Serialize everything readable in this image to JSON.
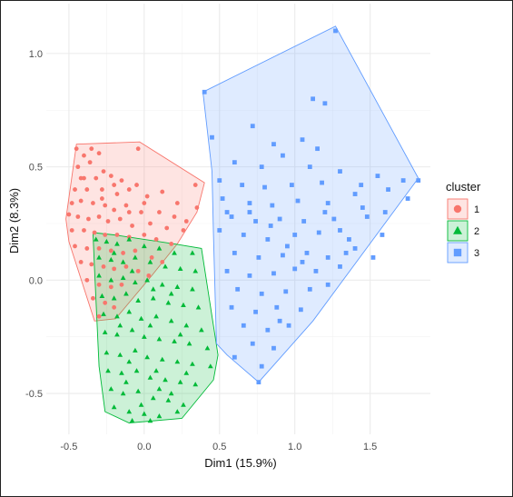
{
  "chart_data": {
    "type": "scatter",
    "title": "",
    "xlabel": "Dim1 (15.9%)",
    "ylabel": "Dim2 (8.3%)",
    "xlim": [
      -0.65,
      1.9
    ],
    "ylim": [
      -0.68,
      1.22
    ],
    "x_ticks": [
      "-0.5",
      "0.0",
      "0.5",
      "1.0",
      "1.5"
    ],
    "x_tick_values": [
      -0.5,
      0.0,
      0.5,
      1.0,
      1.5
    ],
    "y_ticks": [
      "-0.5",
      "0.0",
      "0.5",
      "1.0"
    ],
    "y_tick_values": [
      -0.5,
      0.0,
      0.5,
      1.0
    ],
    "grid": true,
    "legend_position": "right",
    "legend_title": "cluster",
    "series": [
      {
        "name": "1",
        "marker": "circle",
        "color": "#F8766D",
        "hull": [
          [
            -0.45,
            0.6
          ],
          [
            -0.03,
            0.61
          ],
          [
            0.4,
            0.43
          ],
          [
            0.35,
            0.3
          ],
          [
            0.22,
            0.16
          ],
          [
            0.05,
            0.02
          ],
          [
            -0.19,
            -0.17
          ],
          [
            -0.33,
            -0.18
          ],
          [
            -0.5,
            0.17
          ],
          [
            -0.52,
            0.27
          ]
        ],
        "points": [
          [
            -0.45,
            0.58
          ],
          [
            -0.4,
            0.55
          ],
          [
            -0.3,
            0.56
          ],
          [
            -0.04,
            0.58
          ],
          [
            -0.44,
            0.5
          ],
          [
            -0.36,
            0.52
          ],
          [
            -0.27,
            0.48
          ],
          [
            -0.4,
            0.45
          ],
          [
            -0.32,
            0.45
          ],
          [
            -0.22,
            0.46
          ],
          [
            -0.15,
            0.44
          ],
          [
            -0.05,
            0.42
          ],
          [
            -0.46,
            0.4
          ],
          [
            -0.38,
            0.4
          ],
          [
            -0.28,
            0.4
          ],
          [
            -0.18,
            0.38
          ],
          [
            -0.1,
            0.4
          ],
          [
            0.02,
            0.37
          ],
          [
            0.12,
            0.39
          ],
          [
            0.22,
            0.34
          ],
          [
            0.34,
            0.42
          ],
          [
            -0.48,
            0.34
          ],
          [
            -0.42,
            0.35
          ],
          [
            -0.34,
            0.34
          ],
          [
            -0.26,
            0.33
          ],
          [
            -0.2,
            0.31
          ],
          [
            -0.12,
            0.33
          ],
          [
            -0.02,
            0.3
          ],
          [
            0.1,
            0.3
          ],
          [
            0.2,
            0.28
          ],
          [
            0.35,
            0.32
          ],
          [
            -0.5,
            0.29
          ],
          [
            -0.44,
            0.28
          ],
          [
            -0.37,
            0.27
          ],
          [
            -0.3,
            0.28
          ],
          [
            -0.24,
            0.26
          ],
          [
            -0.16,
            0.27
          ],
          [
            -0.08,
            0.24
          ],
          [
            0.04,
            0.25
          ],
          [
            0.15,
            0.23
          ],
          [
            0.26,
            0.22
          ],
          [
            -0.48,
            0.22
          ],
          [
            -0.4,
            0.22
          ],
          [
            -0.33,
            0.21
          ],
          [
            -0.26,
            0.2
          ],
          [
            -0.18,
            0.2
          ],
          [
            -0.1,
            0.19
          ],
          [
            0.0,
            0.2
          ],
          [
            0.08,
            0.18
          ],
          [
            0.18,
            0.16
          ],
          [
            -0.46,
            0.15
          ],
          [
            -0.38,
            0.14
          ],
          [
            -0.3,
            0.14
          ],
          [
            -0.22,
            0.13
          ],
          [
            -0.14,
            0.12
          ],
          [
            -0.06,
            0.13
          ],
          [
            0.05,
            0.1
          ],
          [
            0.12,
            0.08
          ],
          [
            -0.42,
            0.08
          ],
          [
            -0.35,
            0.07
          ],
          [
            -0.27,
            0.06
          ],
          [
            -0.2,
            0.05
          ],
          [
            -0.12,
            0.06
          ],
          [
            -0.04,
            0.04
          ],
          [
            0.03,
            0.02
          ],
          [
            -0.38,
            0.0
          ],
          [
            -0.3,
            -0.02
          ],
          [
            -0.22,
            -0.03
          ],
          [
            -0.15,
            -0.02
          ],
          [
            -0.34,
            -0.08
          ],
          [
            -0.26,
            -0.1
          ],
          [
            -0.2,
            -0.12
          ],
          [
            -0.3,
            -0.16
          ],
          [
            -0.42,
            0.45
          ],
          [
            -0.35,
            0.58
          ],
          [
            -0.28,
            0.36
          ],
          [
            -0.2,
            0.42
          ],
          [
            -0.1,
            0.3
          ],
          [
            0.0,
            0.34
          ],
          [
            0.28,
            0.26
          ]
        ]
      },
      {
        "name": "2",
        "marker": "triangle",
        "color": "#00BA38",
        "hull": [
          [
            -0.34,
            0.21
          ],
          [
            -0.2,
            0.2
          ],
          [
            0.2,
            0.16
          ],
          [
            0.38,
            0.14
          ],
          [
            0.49,
            -0.33
          ],
          [
            0.46,
            -0.44
          ],
          [
            0.25,
            -0.61
          ],
          [
            -0.1,
            -0.63
          ],
          [
            -0.26,
            -0.58
          ],
          [
            -0.3,
            -0.38
          ],
          [
            -0.33,
            0.05
          ]
        ],
        "points": [
          [
            -0.32,
            0.18
          ],
          [
            -0.25,
            0.17
          ],
          [
            -0.18,
            0.16
          ],
          [
            -0.1,
            0.18
          ],
          [
            0.0,
            0.15
          ],
          [
            0.1,
            0.14
          ],
          [
            0.2,
            0.12
          ],
          [
            0.32,
            0.12
          ],
          [
            -0.3,
            0.1
          ],
          [
            -0.22,
            0.09
          ],
          [
            -0.14,
            0.08
          ],
          [
            -0.06,
            0.1
          ],
          [
            0.04,
            0.08
          ],
          [
            0.14,
            0.06
          ],
          [
            0.24,
            0.05
          ],
          [
            0.34,
            0.04
          ],
          [
            -0.3,
            0.02
          ],
          [
            -0.22,
            0.0
          ],
          [
            -0.14,
            0.01
          ],
          [
            -0.06,
            -0.01
          ],
          [
            0.02,
            0.0
          ],
          [
            0.12,
            -0.02
          ],
          [
            0.22,
            -0.03
          ],
          [
            0.32,
            -0.04
          ],
          [
            -0.28,
            -0.07
          ],
          [
            -0.2,
            -0.08
          ],
          [
            -0.12,
            -0.06
          ],
          [
            -0.04,
            -0.09
          ],
          [
            0.06,
            -0.08
          ],
          [
            0.16,
            -0.1
          ],
          [
            0.26,
            -0.11
          ],
          [
            0.36,
            -0.12
          ],
          [
            -0.27,
            -0.15
          ],
          [
            -0.18,
            -0.16
          ],
          [
            -0.1,
            -0.14
          ],
          [
            -0.02,
            -0.17
          ],
          [
            0.08,
            -0.16
          ],
          [
            0.18,
            -0.18
          ],
          [
            0.28,
            -0.2
          ],
          [
            0.38,
            -0.22
          ],
          [
            -0.26,
            -0.23
          ],
          [
            -0.18,
            -0.24
          ],
          [
            -0.08,
            -0.22
          ],
          [
            0.0,
            -0.25
          ],
          [
            0.1,
            -0.26
          ],
          [
            0.2,
            -0.27
          ],
          [
            0.3,
            -0.28
          ],
          [
            0.42,
            -0.3
          ],
          [
            -0.25,
            -0.32
          ],
          [
            -0.16,
            -0.33
          ],
          [
            -0.06,
            -0.31
          ],
          [
            0.02,
            -0.34
          ],
          [
            0.12,
            -0.35
          ],
          [
            0.22,
            -0.36
          ],
          [
            0.32,
            -0.37
          ],
          [
            0.44,
            -0.38
          ],
          [
            -0.24,
            -0.4
          ],
          [
            -0.15,
            -0.41
          ],
          [
            -0.05,
            -0.4
          ],
          [
            0.04,
            -0.43
          ],
          [
            0.14,
            -0.44
          ],
          [
            0.24,
            -0.45
          ],
          [
            0.34,
            -0.46
          ],
          [
            -0.22,
            -0.48
          ],
          [
            -0.14,
            -0.5
          ],
          [
            -0.04,
            -0.49
          ],
          [
            0.06,
            -0.52
          ],
          [
            0.16,
            -0.53
          ],
          [
            0.26,
            -0.55
          ],
          [
            -0.2,
            -0.56
          ],
          [
            -0.1,
            -0.58
          ],
          [
            0.0,
            -0.59
          ],
          [
            0.1,
            -0.6
          ],
          [
            0.22,
            -0.58
          ],
          [
            -0.08,
            -0.62
          ],
          [
            0.04,
            -0.62
          ],
          [
            -0.2,
            0.12
          ],
          [
            -0.08,
            0.04
          ],
          [
            0.06,
            -0.04
          ],
          [
            0.18,
            -0.06
          ],
          [
            -0.16,
            -0.2
          ],
          [
            0.04,
            -0.2
          ],
          [
            0.24,
            -0.24
          ],
          [
            -0.1,
            -0.36
          ],
          [
            0.08,
            -0.4
          ],
          [
            0.28,
            -0.41
          ],
          [
            -0.12,
            -0.45
          ],
          [
            0.1,
            -0.48
          ],
          [
            -0.02,
            -0.55
          ],
          [
            0.18,
            -0.5
          ]
        ]
      },
      {
        "name": "3",
        "marker": "square",
        "color": "#619CFF",
        "hull": [
          [
            0.39,
            0.83
          ],
          [
            1.27,
            1.12
          ],
          [
            1.82,
            0.45
          ],
          [
            1.12,
            -0.18
          ],
          [
            0.76,
            -0.45
          ],
          [
            0.55,
            -0.33
          ],
          [
            0.48,
            -0.28
          ],
          [
            0.46,
            0.2
          ],
          [
            0.45,
            0.48
          ]
        ],
        "points": [
          [
            1.27,
            1.1
          ],
          [
            0.4,
            0.83
          ],
          [
            1.12,
            0.8
          ],
          [
            1.2,
            0.78
          ],
          [
            0.72,
            0.68
          ],
          [
            0.86,
            0.6
          ],
          [
            1.05,
            0.62
          ],
          [
            1.15,
            0.58
          ],
          [
            0.45,
            0.63
          ],
          [
            0.6,
            0.52
          ],
          [
            0.78,
            0.5
          ],
          [
            0.92,
            0.55
          ],
          [
            1.1,
            0.5
          ],
          [
            1.3,
            0.48
          ],
          [
            1.55,
            0.46
          ],
          [
            1.72,
            0.44
          ],
          [
            1.82,
            0.44
          ],
          [
            0.5,
            0.44
          ],
          [
            0.65,
            0.42
          ],
          [
            0.8,
            0.41
          ],
          [
            0.98,
            0.42
          ],
          [
            1.18,
            0.43
          ],
          [
            1.4,
            0.38
          ],
          [
            1.62,
            0.4
          ],
          [
            0.52,
            0.36
          ],
          [
            0.7,
            0.34
          ],
          [
            0.85,
            0.33
          ],
          [
            1.02,
            0.35
          ],
          [
            1.22,
            0.34
          ],
          [
            1.45,
            0.32
          ],
          [
            1.75,
            0.36
          ],
          [
            0.58,
            0.28
          ],
          [
            0.74,
            0.26
          ],
          [
            0.9,
            0.27
          ],
          [
            1.06,
            0.26
          ],
          [
            1.26,
            0.27
          ],
          [
            1.48,
            0.28
          ],
          [
            0.5,
            0.22
          ],
          [
            0.66,
            0.2
          ],
          [
            0.82,
            0.18
          ],
          [
            1.0,
            0.2
          ],
          [
            1.16,
            0.21
          ],
          [
            1.36,
            0.18
          ],
          [
            1.58,
            0.2
          ],
          [
            0.6,
            0.12
          ],
          [
            0.76,
            0.1
          ],
          [
            0.92,
            0.11
          ],
          [
            1.08,
            0.12
          ],
          [
            1.22,
            0.1
          ],
          [
            1.4,
            0.14
          ],
          [
            1.52,
            0.1
          ],
          [
            0.55,
            0.04
          ],
          [
            0.7,
            0.02
          ],
          [
            0.86,
            0.03
          ],
          [
            1.0,
            0.05
          ],
          [
            1.14,
            0.04
          ],
          [
            1.3,
            0.06
          ],
          [
            0.62,
            -0.04
          ],
          [
            0.78,
            -0.06
          ],
          [
            0.94,
            -0.05
          ],
          [
            1.1,
            -0.04
          ],
          [
            1.22,
            -0.02
          ],
          [
            0.58,
            -0.12
          ],
          [
            0.74,
            -0.14
          ],
          [
            0.88,
            -0.12
          ],
          [
            1.04,
            -0.13
          ],
          [
            0.66,
            -0.2
          ],
          [
            0.82,
            -0.22
          ],
          [
            0.96,
            -0.2
          ],
          [
            0.72,
            -0.28
          ],
          [
            0.86,
            -0.3
          ],
          [
            0.6,
            -0.34
          ],
          [
            0.78,
            -0.38
          ],
          [
            0.76,
            -0.45
          ],
          [
            1.2,
            0.3
          ],
          [
            1.3,
            0.22
          ],
          [
            0.95,
            0.15
          ],
          [
            1.05,
            0.08
          ],
          [
            0.7,
            0.3
          ],
          [
            0.84,
            0.24
          ],
          [
            1.34,
            0.12
          ],
          [
            0.9,
            -0.18
          ],
          [
            0.55,
            0.3
          ],
          [
            1.6,
            0.3
          ],
          [
            1.44,
            0.42
          ]
        ]
      }
    ]
  }
}
